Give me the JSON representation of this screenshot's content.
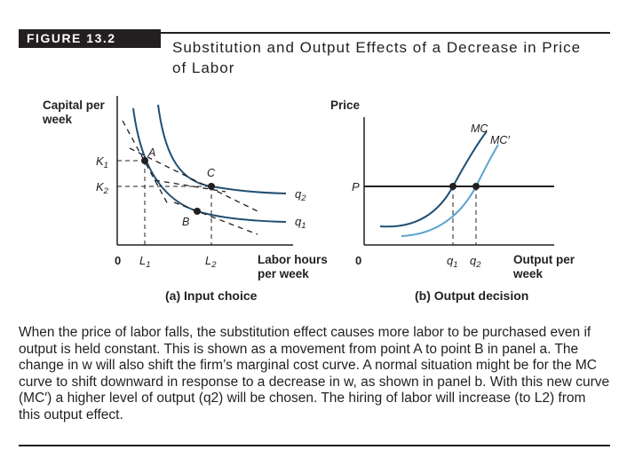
{
  "figure": {
    "label": "FIGURE 13.2",
    "title": "Substitution and Output Effects of a Decrease in Price of Labor"
  },
  "panel_a": {
    "y_axis_label_line1": "Capital per",
    "y_axis_label_line2": "week",
    "x_axis_label_line1": "Labor hours",
    "x_axis_label_line2": "per week",
    "origin": "0",
    "k1": "K",
    "k1_sub": "1",
    "k2": "K",
    "k2_sub": "2",
    "l1": "L",
    "l1_sub": "1",
    "l2": "L",
    "l2_sub": "2",
    "point_a": "A",
    "point_b": "B",
    "point_c": "C",
    "q1": "q",
    "q1_sub": "1",
    "q2": "q",
    "q2_sub": "2",
    "caption": "(a) Input choice"
  },
  "panel_b": {
    "y_axis_label": "Price",
    "x_axis_label_line1": "Output per",
    "x_axis_label_line2": "week",
    "origin": "0",
    "p": "P",
    "mc": "MC",
    "mc_prime": "MC′",
    "q1": "q",
    "q1_sub": "1",
    "q2": "q",
    "q2_sub": "2",
    "caption": "(b) Output decision"
  },
  "caption_text": "When the price of labor falls, the substitution effect causes more labor to be purchased even if output is held constant. This is shown as a movement from point A to point B in panel a. The change in w will also shift the firm’s marginal cost curve. A normal situation might be for the MC curve to shift downward in response to a decrease in w, as shown in panel b. With this new curve (MC′) a higher level of output (q2) will be chosen. The hiring of labor will increase (to L2) from this output effect.",
  "colors": {
    "dark_curve": "#1f4f73",
    "light_curve": "#5aa3cf",
    "ink": "#231f20"
  }
}
